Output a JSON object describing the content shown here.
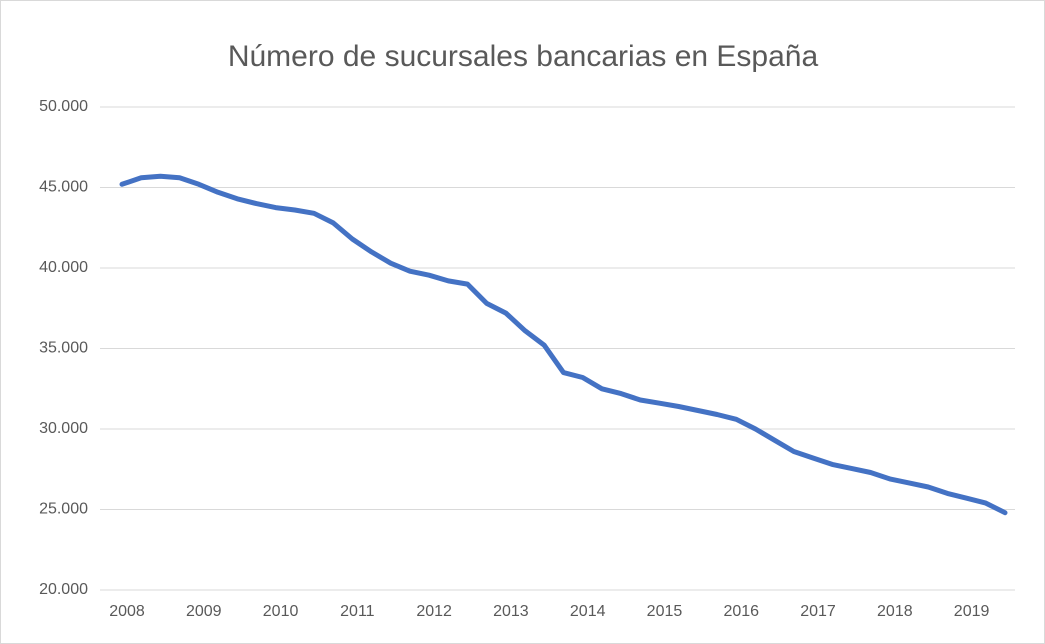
{
  "chart_data": {
    "type": "line",
    "title": "Número de sucursales bancarias en España",
    "categories": [
      "2008",
      null,
      null,
      null,
      "2009",
      null,
      null,
      null,
      "2010",
      null,
      null,
      null,
      "2011",
      null,
      null,
      null,
      "2012",
      null,
      null,
      null,
      "2013",
      null,
      null,
      null,
      "2014",
      null,
      null,
      null,
      "2015",
      null,
      null,
      null,
      "2016",
      null,
      null,
      null,
      "2017",
      null,
      null,
      null,
      "2018",
      null,
      null,
      null,
      "2019",
      null,
      null
    ],
    "series": [
      {
        "color": "#4472c4",
        "values": [
          45200,
          45600,
          45700,
          45600,
          45200,
          44700,
          44300,
          44000,
          43750,
          43600,
          43400,
          42800,
          41800,
          41000,
          40300,
          39800,
          39550,
          39200,
          39000,
          37800,
          37200,
          36100,
          35200,
          33500,
          33200,
          32500,
          32200,
          31800,
          31600,
          31400,
          31150,
          30900,
          30600,
          30000,
          29300,
          28600,
          28200,
          27800,
          27550,
          27300,
          26900,
          26650,
          26400,
          26000,
          25700,
          25400,
          24800
        ]
      }
    ],
    "ylim": [
      20000,
      50000
    ],
    "yticks": [
      {
        "value": 20000,
        "label": "20.000"
      },
      {
        "value": 25000,
        "label": "25.000"
      },
      {
        "value": 30000,
        "label": "30.000"
      },
      {
        "value": 35000,
        "label": "35.000"
      },
      {
        "value": 40000,
        "label": "40.000"
      },
      {
        "value": 45000,
        "label": "45.000"
      },
      {
        "value": 50000,
        "label": "50.000"
      }
    ],
    "grid": true
  }
}
